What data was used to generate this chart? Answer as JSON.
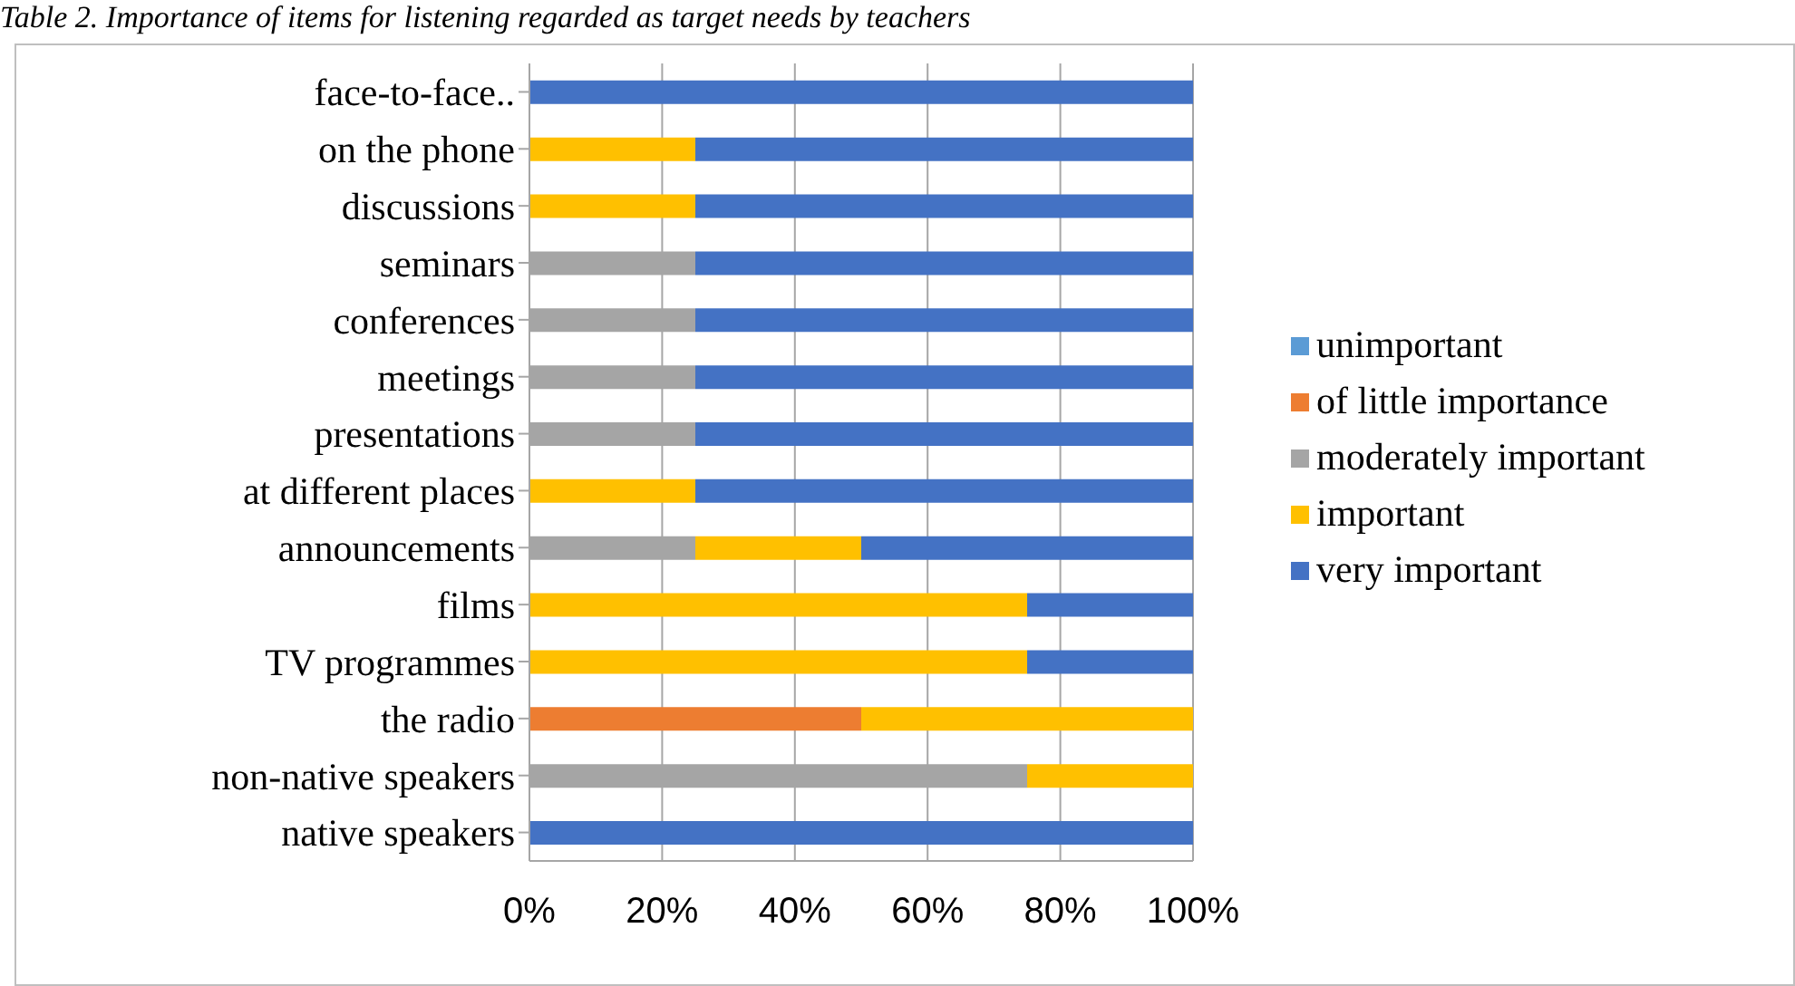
{
  "chart_data": {
    "type": "bar",
    "orientation": "horizontal",
    "stacked": true,
    "title": "Table 2. Importance of items for listening regarded as target needs by teachers",
    "categories": [
      "face-to-face..",
      "on the phone",
      "discussions",
      "seminars",
      "conferences",
      "meetings",
      "presentations",
      "at different places",
      "announcements",
      "films",
      "TV programmes",
      "the radio",
      "non-native speakers",
      "native speakers"
    ],
    "series": [
      {
        "name": "unimportant",
        "color": "#5b9bd5",
        "values": [
          0,
          0,
          0,
          0,
          0,
          0,
          0,
          0,
          0,
          0,
          0,
          0,
          0,
          0
        ]
      },
      {
        "name": "of little importance",
        "color": "#ed7d31",
        "values": [
          0,
          0,
          0,
          0,
          0,
          0,
          0,
          0,
          0,
          0,
          0,
          50,
          0,
          0
        ]
      },
      {
        "name": "moderately important",
        "color": "#a5a5a5",
        "values": [
          0,
          0,
          0,
          25,
          25,
          25,
          25,
          0,
          25,
          0,
          0,
          0,
          75,
          0
        ]
      },
      {
        "name": "important",
        "color": "#ffc000",
        "values": [
          0,
          25,
          25,
          0,
          0,
          0,
          0,
          25,
          25,
          75,
          75,
          50,
          25,
          0
        ]
      },
      {
        "name": "very important",
        "color": "#4472c4",
        "values": [
          100,
          75,
          75,
          75,
          75,
          75,
          75,
          75,
          50,
          25,
          25,
          0,
          0,
          100
        ]
      }
    ],
    "xlim": [
      0,
      100
    ],
    "xticks": [
      {
        "value": 0,
        "label": "0%"
      },
      {
        "value": 20,
        "label": "20%"
      },
      {
        "value": 40,
        "label": "40%"
      },
      {
        "value": 60,
        "label": "60%"
      },
      {
        "value": 80,
        "label": "80%"
      },
      {
        "value": 100,
        "label": "100%"
      }
    ],
    "grid": "x",
    "legend": "right"
  }
}
